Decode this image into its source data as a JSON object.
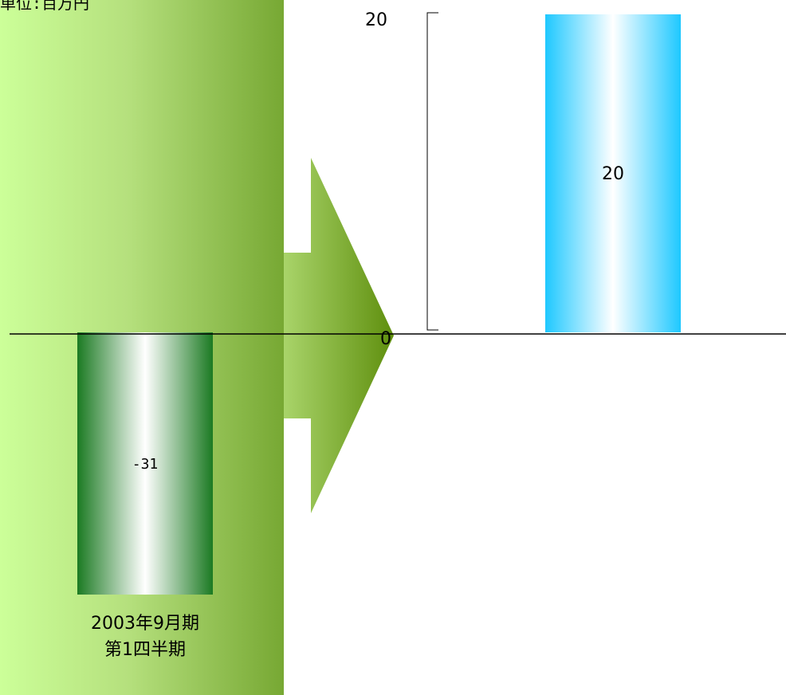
{
  "unit_label": "単位:百万円",
  "chart_data": {
    "type": "bar",
    "categories": [
      "2003年9月期\n第1四半期",
      ""
    ],
    "values": [
      -31,
      20
    ],
    "data_labels": [
      "-31",
      "20"
    ],
    "category_label_lines": [
      "2003年9月期",
      "第1四半期"
    ],
    "y_ticks": [
      {
        "value": 0,
        "label": "0"
      },
      {
        "value": 20,
        "label": "20"
      }
    ],
    "ylim": [
      -31,
      20
    ],
    "grid": false,
    "legend": "none",
    "colors": {
      "background_panel_light": "#ccff99",
      "background_panel_dark": "#77a833",
      "arrow_start": "#a9d46a",
      "arrow_end": "#5f8f0e",
      "bar_negative_edge": "#1b7a22",
      "bar_positive_edge": "#1ec8ff",
      "bar_center": "#ffffff"
    }
  }
}
